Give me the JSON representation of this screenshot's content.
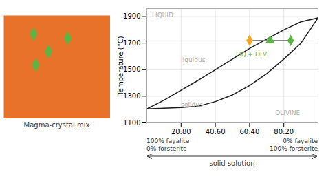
{
  "chart_data": [
    {
      "type": "illustration",
      "color": "#e8722a",
      "marker": "diamond",
      "colors": [
        "#5ab542",
        "#5ab542",
        "#5ab542",
        "#5ab542"
      ],
      "annotations": [
        {
          "text": "Magma-crystal mix",
          "color": "#333333"
        }
      ]
    },
    {
      "type": "line",
      "ylabel": "Temperature (°C)",
      "xlabel": "solid solution",
      "x_end_labels": [
        "100% fayalite\n0% forsterite",
        "0% fayalite\n100% forsterite"
      ],
      "x": [
        0,
        10,
        20,
        30,
        40,
        50,
        60,
        70,
        80,
        90,
        100
      ],
      "xlim": [
        0,
        100
      ],
      "xticks": [
        {
          "value": 20,
          "label": "20:80"
        },
        {
          "value": 40,
          "label": "40:60"
        },
        {
          "value": 60,
          "label": "60:40"
        },
        {
          "value": 80,
          "label": "80:20"
        }
      ],
      "ylim": [
        1100,
        1960
      ],
      "yticks": [
        1100,
        1300,
        1500,
        1700,
        1900
      ],
      "grid": true,
      "series": [
        {
          "type": "line",
          "color": "#1a1a1a",
          "values": [
            1205,
            1270,
            1345,
            1420,
            1500,
            1580,
            1660,
            1730,
            1800,
            1860,
            1890
          ]
        },
        {
          "type": "line",
          "color": "#1a1a1a",
          "values": [
            1205,
            1210,
            1215,
            1225,
            1260,
            1310,
            1380,
            1470,
            1580,
            1700,
            1890
          ]
        },
        {
          "type": "line",
          "color": "#888888",
          "x": [
            60,
            84
          ],
          "values": [
            1720,
            1720
          ]
        },
        {
          "type": "scatter",
          "marker": "diamond",
          "color": "#f5a623",
          "x": [
            60
          ],
          "values": [
            1720
          ]
        },
        {
          "type": "scatter",
          "marker": "triangle",
          "color": "#5ab542",
          "x": [
            72
          ],
          "values": [
            1720
          ]
        },
        {
          "type": "scatter",
          "marker": "diamond",
          "color": "#5ab542",
          "x": [
            84
          ],
          "values": [
            1720
          ]
        }
      ],
      "annotations": [
        {
          "text": "LIQUID",
          "x": 3,
          "y": 1930,
          "color": "#aaaaaa"
        },
        {
          "text": "liquidus",
          "x": 20,
          "y": 1560,
          "color": "#aaaaaa"
        },
        {
          "text": "solidus",
          "x": 20,
          "y": 1220,
          "color": "#aaaaaa"
        },
        {
          "text": "LIQ + OLV",
          "x": 52,
          "y": 1600,
          "color": "#7ab542"
        },
        {
          "text": "OLIVINE",
          "x": 75,
          "y": 1160,
          "color": "#aaaaaa"
        }
      ]
    }
  ]
}
